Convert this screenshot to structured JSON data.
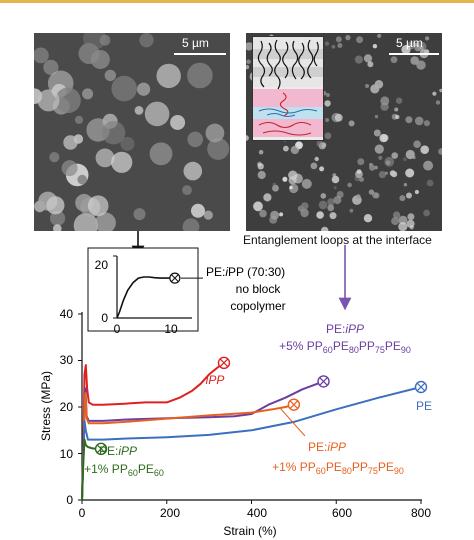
{
  "colors": {
    "rule": "#e1b64b",
    "ipp": "#e02020",
    "block5": "#6a3fa0",
    "pe": "#3d6fc0",
    "block1": "#e86020",
    "diblock": "#2e6b1e",
    "arrow": "#7a55b0"
  },
  "micrographs": {
    "left": {
      "scale": "5 µm"
    },
    "right": {
      "scale": "5 µm",
      "caption": "Entanglement loops at the interface"
    }
  },
  "chart_data": [
    {
      "type": "line",
      "panel": "inset",
      "x_ticks": [
        "0",
        "10"
      ],
      "y_ticks": [
        "0",
        "20"
      ],
      "xlim": [
        0,
        14
      ],
      "ylim": [
        0,
        28
      ],
      "series": [
        {
          "name": "PE:iPP (70:30) no block copolymer",
          "name_lines": [
            "PE:iPP (70:30)",
            "no block",
            "copolymer"
          ],
          "points": [
            [
              0,
              0
            ],
            [
              0.5,
              3
            ],
            [
              1.2,
              8
            ],
            [
              2,
              12.5
            ],
            [
              3,
              16
            ],
            [
              4,
              18
            ],
            [
              5,
              18.5
            ],
            [
              6,
              18.5
            ],
            [
              7,
              18.2
            ],
            [
              8,
              18
            ],
            [
              9,
              18
            ],
            [
              10,
              18
            ],
            [
              10.8,
              18
            ]
          ]
        }
      ]
    },
    {
      "type": "line",
      "panel": "main",
      "xlabel": "Strain (%)",
      "ylabel": "Stress (MPa)",
      "xlim": [
        0,
        800
      ],
      "ylim": [
        0,
        40
      ],
      "x_ticks": [
        "0",
        "200",
        "400",
        "600",
        "800"
      ],
      "y_ticks": [
        "0",
        "10",
        "20",
        "30",
        "40"
      ],
      "series": [
        {
          "key": "ipp",
          "name": "iPP",
          "points": [
            [
              0,
              0
            ],
            [
              3,
              10
            ],
            [
              6,
              27
            ],
            [
              9,
              29
            ],
            [
              12,
              24
            ],
            [
              16,
              21
            ],
            [
              25,
              20.5
            ],
            [
              50,
              20.5
            ],
            [
              100,
              20.7
            ],
            [
              150,
              21
            ],
            [
              200,
              21
            ],
            [
              230,
              22
            ],
            [
              260,
              23.5
            ],
            [
              280,
              25
            ],
            [
              300,
              27
            ],
            [
              320,
              28.5
            ],
            [
              335,
              29.5
            ]
          ]
        },
        {
          "key": "block5",
          "name": "PE:iPP +5% PP60PE80PP75PE90",
          "points": [
            [
              0,
              0
            ],
            [
              3,
              10
            ],
            [
              6,
              20
            ],
            [
              8,
              24
            ],
            [
              11,
              18
            ],
            [
              16,
              17
            ],
            [
              50,
              17
            ],
            [
              100,
              17.3
            ],
            [
              200,
              17.6
            ],
            [
              300,
              17.8
            ],
            [
              360,
              18
            ],
            [
              400,
              18.5
            ],
            [
              440,
              20.5
            ],
            [
              480,
              22
            ],
            [
              520,
              23.8
            ],
            [
              555,
              25
            ],
            [
              570,
              25.5
            ]
          ]
        },
        {
          "key": "block1",
          "name": "PE:iPP +1% PP60PE80PP75PE90",
          "points": [
            [
              0,
              0
            ],
            [
              3,
              10
            ],
            [
              6,
              20
            ],
            [
              8,
              23
            ],
            [
              11,
              17.5
            ],
            [
              16,
              16.5
            ],
            [
              50,
              16.5
            ],
            [
              100,
              16.8
            ],
            [
              200,
              17.5
            ],
            [
              300,
              18.2
            ],
            [
              400,
              18.8
            ],
            [
              450,
              19.5
            ],
            [
              480,
              20
            ],
            [
              500,
              20.5
            ]
          ]
        },
        {
          "key": "pe",
          "name": "PE",
          "points": [
            [
              0,
              0
            ],
            [
              3,
              9
            ],
            [
              6,
              17
            ],
            [
              9,
              15
            ],
            [
              14,
              13
            ],
            [
              50,
              13
            ],
            [
              100,
              13.2
            ],
            [
              200,
              13.5
            ],
            [
              300,
              14
            ],
            [
              400,
              15
            ],
            [
              500,
              16.8
            ],
            [
              600,
              19.5
            ],
            [
              700,
              22
            ],
            [
              800,
              24.3
            ]
          ]
        },
        {
          "key": "diblock",
          "name": "PE:iPP +1% PP60PE60",
          "points": [
            [
              0,
              0
            ],
            [
              3,
              8
            ],
            [
              6,
              13
            ],
            [
              9,
              11.8
            ],
            [
              14,
              11.4
            ],
            [
              25,
              11.1
            ],
            [
              35,
              11
            ],
            [
              45,
              11
            ]
          ]
        }
      ]
    }
  ],
  "annotations": {
    "inset_label": [
      "PE:iPP (70:30)",
      "no block",
      "copolymer"
    ],
    "ipp": "iPP",
    "pe": "PE",
    "block5": {
      "line1_a": "PE:",
      "line1_b": "iPP",
      "line2_a": "+5% PP",
      "s1": "60",
      "t1": "PE",
      "s2": "80",
      "t2": "PP",
      "s3": "75",
      "t3": "PE",
      "s4": "90"
    },
    "block1": {
      "line1_a": "PE:",
      "line1_b": "iPP",
      "line2_a": "+1% PP",
      "s1": "60",
      "t1": "PE",
      "s2": "80",
      "t2": "PP",
      "s3": "75",
      "t3": "PE",
      "s4": "90"
    },
    "diblock": {
      "line1_a": "PE:",
      "line1_b": "iPP",
      "line2_a": "+1% PP",
      "s1": "60",
      "t1": "PE",
      "s2": "60"
    }
  }
}
